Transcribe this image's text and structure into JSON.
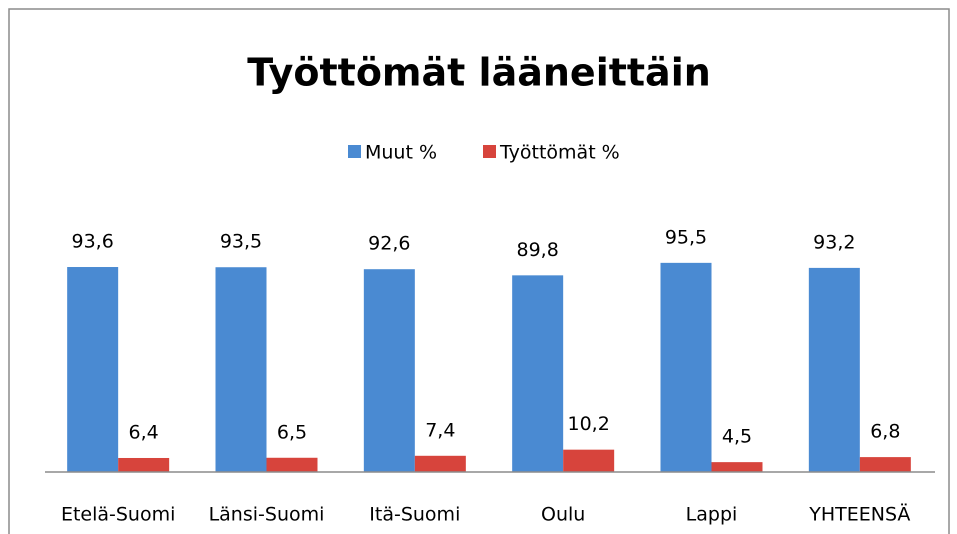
{
  "chart_data": {
    "type": "bar",
    "title": "Työttömät lääneittäin",
    "categories": [
      "Etelä-Suomi",
      "Länsi-Suomi",
      "Itä-Suomi",
      "Oulu",
      "Lappi",
      "YHTEENSÄ"
    ],
    "series": [
      {
        "name": "Muut %",
        "color": "#4a8ad2",
        "values": [
          93.6,
          93.5,
          92.6,
          89.8,
          95.5,
          93.2
        ],
        "value_labels": [
          "93,6",
          "93,5",
          "92,6",
          "89,8",
          "95,5",
          "93,2"
        ]
      },
      {
        "name": "Työttömät %",
        "color": "#d7443c",
        "values": [
          6.4,
          6.5,
          7.4,
          10.2,
          4.5,
          6.8
        ],
        "value_labels": [
          "6,4",
          "6,5",
          "7,4",
          "10,2",
          "4,5",
          "6,8"
        ]
      }
    ],
    "ylim": [
      0,
      100
    ],
    "legend": "top"
  }
}
